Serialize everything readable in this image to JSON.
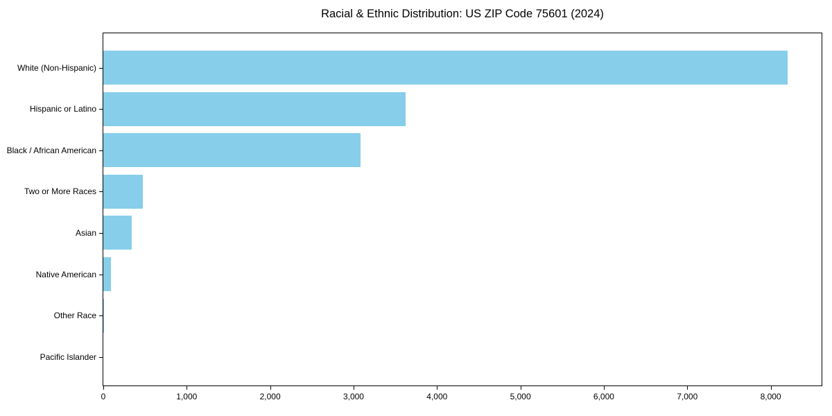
{
  "title": "Racial & Ethnic Distribution: US ZIP Code 75601 (2024)",
  "colors": {
    "bar": "#87CEEB",
    "axis": "#000000",
    "text": "#000000",
    "background": "#ffffff"
  },
  "chart_data": {
    "type": "bar",
    "orientation": "horizontal",
    "title": "Racial & Ethnic Distribution: US ZIP Code 75601 (2024)",
    "xlabel": "",
    "ylabel": "",
    "categories": [
      "White (Non-Hispanic)",
      "Hispanic or Latino",
      "Black / African American",
      "Two or More Races",
      "Asian",
      "Native American",
      "Other Race",
      "Pacific Islander"
    ],
    "values": [
      8200,
      3620,
      3080,
      470,
      340,
      90,
      10,
      0
    ],
    "bar_color": "#87CEEB",
    "xlim": [
      0,
      8610
    ],
    "x_ticks": [
      0,
      1000,
      2000,
      3000,
      4000,
      5000,
      6000,
      7000,
      8000
    ],
    "x_tick_labels": [
      "0",
      "1,000",
      "2,000",
      "3,000",
      "4,000",
      "5,000",
      "6,000",
      "7,000",
      "8,000"
    ],
    "grid": false,
    "legend": null
  }
}
